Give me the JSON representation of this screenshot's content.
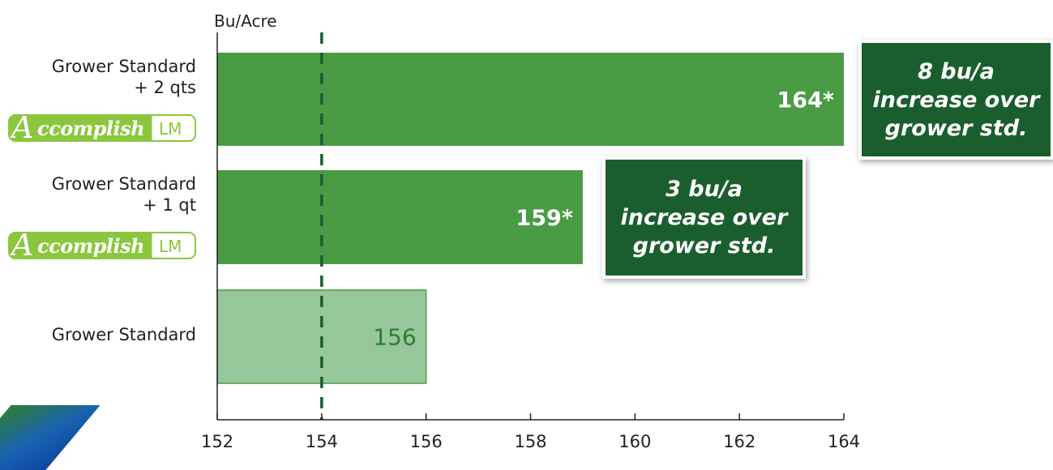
{
  "chart_data": {
    "type": "bar",
    "orientation": "horizontal",
    "ylabel": "Bu/Acre",
    "xlim": [
      152,
      164
    ],
    "xticks": [
      152,
      154,
      156,
      158,
      160,
      162,
      164
    ],
    "reference_line": 154,
    "categories": [
      "Grower Standard + 2 qts Accomplish LM",
      "Grower Standard + 1 qt Accomplish LM",
      "Grower Standard"
    ],
    "values": [
      164,
      159,
      156
    ],
    "value_labels": [
      "164*",
      "159*",
      "156"
    ],
    "colors": [
      "#4a9c44",
      "#4a9c44",
      "#95c79a"
    ]
  },
  "labels": {
    "bar1": {
      "line1": "Grower Standard",
      "line2": "+ 2 qts"
    },
    "bar2": {
      "line1": "Grower Standard",
      "line2": "+ 1 qt"
    },
    "bar3": {
      "line1": "Grower Standard"
    },
    "logo": {
      "a": "A",
      "brand": "ccomplish",
      "suffix": "LM"
    }
  },
  "callouts": [
    {
      "line1": "8 bu/a",
      "line2": "increase over",
      "line3": "grower std."
    },
    {
      "line1": "3 bu/a",
      "line2": "increase over",
      "line3": "grower std."
    }
  ],
  "colors": {
    "bar_treated": "#4a9c44",
    "bar_control": "#95c79a",
    "callout_bg": "#1b5e2e",
    "logo_green": "#8cc63f",
    "reference_line": "#1b5e2e"
  }
}
